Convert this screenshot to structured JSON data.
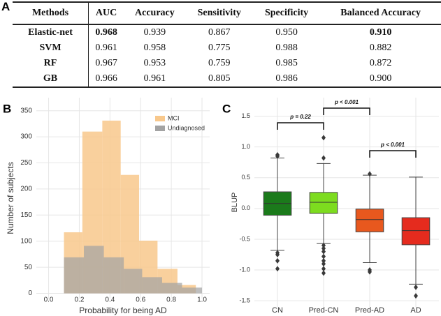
{
  "table": {
    "panel_label": "A",
    "columns": [
      "Methods",
      "AUC",
      "Accuracy",
      "Sensitivity",
      "Specificity",
      "Balanced Accuracy"
    ],
    "rows": [
      [
        "Elastic-net",
        "0.968",
        "0.939",
        "0.867",
        "0.950",
        "0.910"
      ],
      [
        "SVM",
        "0.961",
        "0.958",
        "0.775",
        "0.988",
        "0.882"
      ],
      [
        "RF",
        "0.967",
        "0.953",
        "0.759",
        "0.985",
        "0.872"
      ],
      [
        "GB",
        "0.966",
        "0.961",
        "0.805",
        "0.986",
        "0.900"
      ]
    ]
  },
  "chart_data": [
    {
      "type": "histogram",
      "panel_label": "B",
      "x_label": "Probability for being AD",
      "y_label": "Number of subjects",
      "series": [
        {
          "name": "MCI",
          "color": "#f8c88c",
          "bins": [
            0.1,
            0.22,
            0.35,
            0.47,
            0.59,
            0.71,
            0.84,
            0.96
          ],
          "values": [
            117,
            310,
            331,
            227,
            101,
            47,
            16
          ]
        },
        {
          "name": "Undiagnosed",
          "color": "#a3a3a3",
          "bins": [
            0.1,
            0.23,
            0.36,
            0.49,
            0.61,
            0.74,
            0.87,
            1.0
          ],
          "values": [
            69,
            91,
            69,
            47,
            31,
            20,
            11
          ]
        }
      ],
      "xlim": [
        -0.08,
        1.05
      ],
      "ylim": [
        -10,
        375
      ],
      "xticks": [
        {
          "value": 0,
          "label": "0.0"
        },
        0.2,
        0.4,
        0.6,
        0.8,
        {
          "value": 1,
          "label": "1.0"
        }
      ],
      "yticks": [
        0,
        50,
        100,
        150,
        200,
        250,
        300,
        350
      ],
      "grid": true,
      "legend": "upper right"
    },
    {
      "type": "box",
      "panel_label": "C",
      "y_label": "BLUP",
      "categories": [
        "CN",
        "Pred-CN",
        "Pred-AD",
        "AD"
      ],
      "colors": [
        "#1b7a1b",
        "#7ddc1f",
        "#e8581e",
        "#e52b1e"
      ],
      "boxes": [
        {
          "whislo": -0.68,
          "q1": -0.11,
          "med": 0.08,
          "q3": 0.27,
          "whishi": 0.82,
          "fliers": [
            0.87,
            0.85,
            -0.72,
            -0.75,
            -0.85,
            -0.98
          ]
        },
        {
          "whislo": -0.57,
          "q1": -0.08,
          "med": 0.1,
          "q3": 0.26,
          "whishi": 0.73,
          "fliers": [
            0.82,
            1.15,
            -0.6,
            -0.65,
            -0.7,
            -0.78,
            -0.85,
            -0.9,
            -0.98,
            -1.05
          ]
        },
        {
          "whislo": -0.88,
          "q1": -0.38,
          "med": -0.18,
          "q3": -0.01,
          "whishi": 0.54,
          "fliers": [
            0.56,
            -1.0,
            -1.03
          ]
        },
        {
          "whislo": -1.23,
          "q1": -0.59,
          "med": -0.36,
          "q3": -0.15,
          "whishi": 0.51,
          "fliers": [
            -1.28,
            -1.42
          ]
        }
      ],
      "ylim": [
        -1.6,
        1.8
      ],
      "yticks": [
        -1.5,
        {
          "value": -1,
          "label": "-1.0"
        },
        -0.5,
        {
          "value": 0,
          "label": "0.0"
        },
        0.5,
        {
          "value": 1,
          "label": "1.0"
        },
        1.5
      ],
      "grid": true,
      "annotations": [
        {
          "text": "p = 0.22",
          "between": [
            "CN",
            "Pred-CN"
          ]
        },
        {
          "text": "p < 0.001",
          "between": [
            "Pred-CN",
            "Pred-AD"
          ]
        },
        {
          "text": "p < 0.001",
          "between": [
            "Pred-AD",
            "AD"
          ]
        }
      ]
    }
  ]
}
